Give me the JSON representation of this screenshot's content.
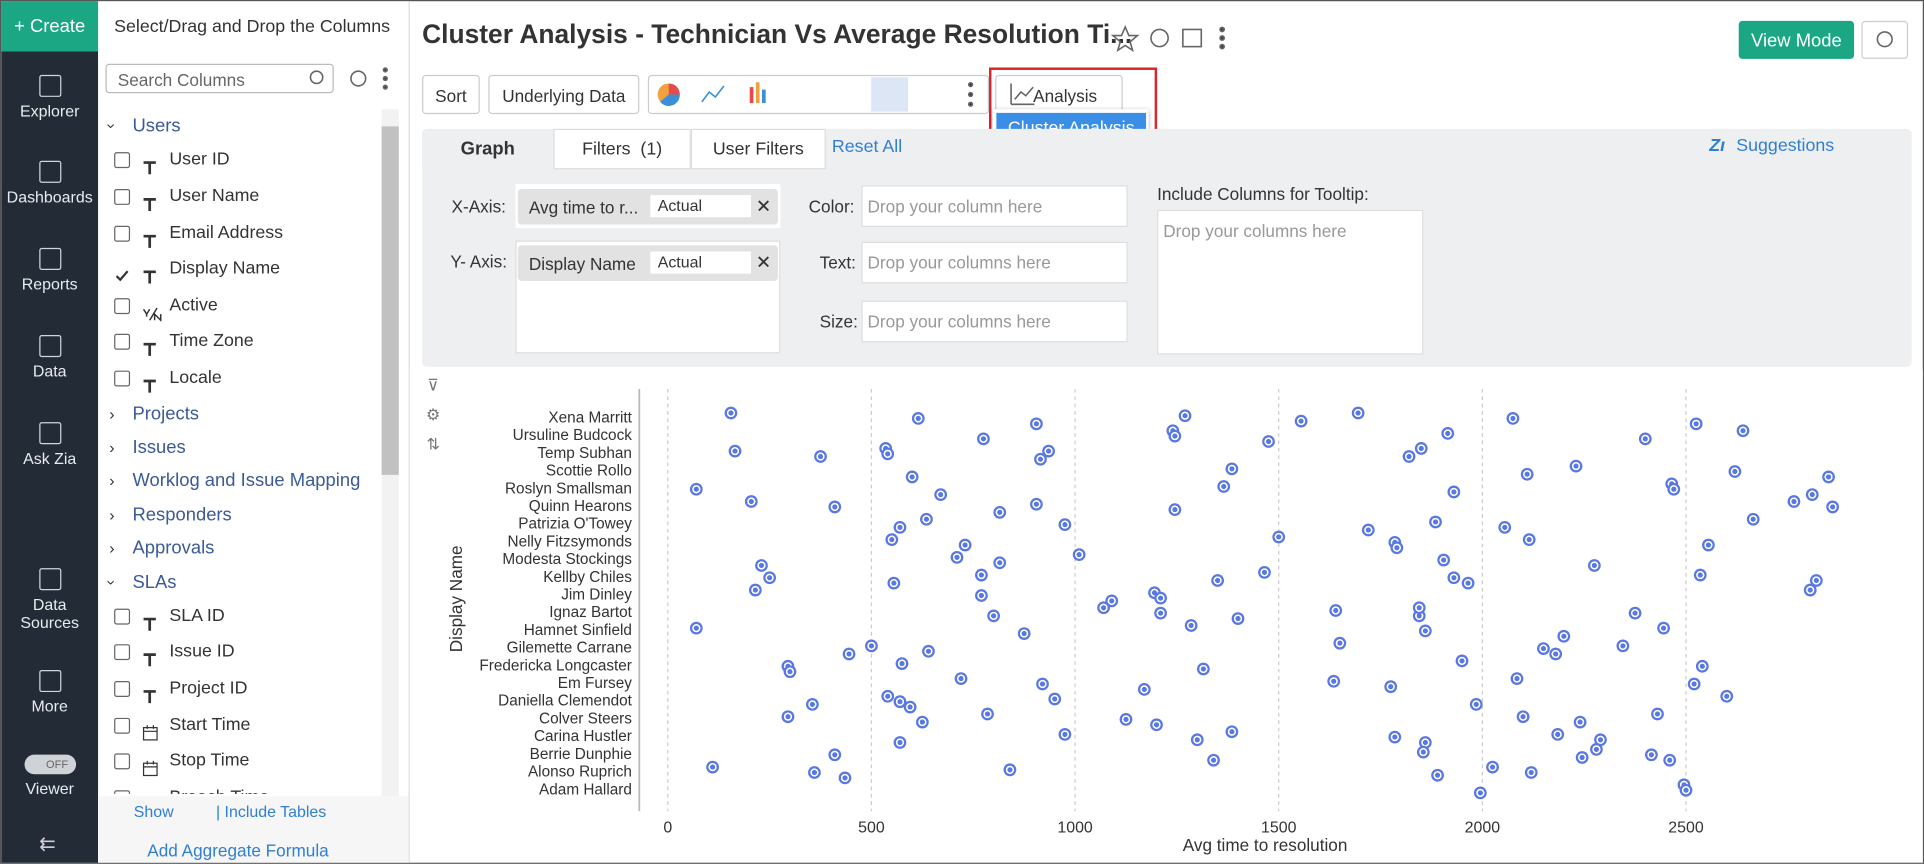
{
  "nav": {
    "create": "Create",
    "items": [
      "Explorer",
      "Dashboards",
      "Reports",
      "Data",
      "Ask Zia",
      "Data Sources",
      "More",
      "Viewer"
    ],
    "toggle": "OFF"
  },
  "columns_panel": {
    "heading": "Select/Drag and Drop the Columns",
    "search_placeholder": "Search Columns",
    "tables": [
      {
        "name": "Users",
        "expanded": true,
        "columns": [
          {
            "name": "User ID",
            "icon": "text",
            "checked": false
          },
          {
            "name": "User Name",
            "icon": "text",
            "checked": false
          },
          {
            "name": "Email Address",
            "icon": "text",
            "checked": false
          },
          {
            "name": "Display Name",
            "icon": "text",
            "checked": true
          },
          {
            "name": "Active",
            "icon": "boolean",
            "checked": false
          },
          {
            "name": "Time Zone",
            "icon": "text",
            "checked": false
          },
          {
            "name": "Locale",
            "icon": "text",
            "checked": false
          }
        ]
      },
      {
        "name": "Projects",
        "expanded": false,
        "columns": []
      },
      {
        "name": "Issues",
        "expanded": false,
        "columns": []
      },
      {
        "name": "Worklog and Issue Mapping",
        "expanded": false,
        "columns": []
      },
      {
        "name": "Responders",
        "expanded": false,
        "columns": []
      },
      {
        "name": "Approvals",
        "expanded": false,
        "columns": []
      },
      {
        "name": "SLAs",
        "expanded": true,
        "columns": [
          {
            "name": "SLA ID",
            "icon": "text",
            "checked": false
          },
          {
            "name": "Issue ID",
            "icon": "text",
            "checked": false
          },
          {
            "name": "Project ID",
            "icon": "text",
            "checked": false
          },
          {
            "name": "Start Time",
            "icon": "date",
            "checked": false
          },
          {
            "name": "Stop Time",
            "icon": "date",
            "checked": false
          },
          {
            "name": "Breach Time",
            "icon": "date",
            "checked": false
          }
        ]
      }
    ],
    "footer": {
      "show": "Show",
      "include": "| Include Tables",
      "aggregate": "Add Aggregate Formula"
    }
  },
  "header": {
    "title": "Cluster Analysis - Technician Vs Average Resolution Ti...",
    "view_mode": "View Mode"
  },
  "toolbar": {
    "sort": "Sort",
    "underlying": "Underlying Data",
    "analysis": "Analysis",
    "analysis_option": "Cluster Analysis"
  },
  "tabs": {
    "graph": "Graph",
    "filters": "Filters  (1)",
    "user_filters": "User Filters",
    "reset": "Reset All",
    "suggestions": "Suggestions"
  },
  "config": {
    "x_label": "X-Axis:",
    "x_field": "Avg time to r...",
    "x_agg": "Actual",
    "y_label": "Y- Axis:",
    "y_field": "Display Name",
    "y_agg": "Actual",
    "color_label": "Color:",
    "color_placeholder": "Drop your column here",
    "text_label": "Text:",
    "text_placeholder": "Drop your columns here",
    "size_label": "Size:",
    "size_placeholder": "Drop your columns here",
    "tooltip_label": "Include Columns for Tooltip:",
    "tooltip_placeholder": "Drop your columns here"
  },
  "chart_data": {
    "type": "scatter",
    "x_label": "Avg time to resolution",
    "y_label": "Display Name",
    "color": "#5a78e4",
    "xlim": [
      -70,
      3000
    ],
    "xticks": [
      0,
      500,
      1000,
      1500,
      2000,
      2500
    ],
    "grid": true,
    "categories": [
      "Xena Marritt",
      "Ursuline Budcock",
      "Temp Subhan",
      "Scottie Rollo",
      "Roslyn Smallsman",
      "Quinn Hearons",
      "Patrizia O'Towey",
      "Nelly Fitzsymonds",
      "Modesta Stockings",
      "Kellby Chiles",
      "Jim Dinley",
      "Ignaz Bartot",
      "Hamnet Sinfield",
      "Gilemette Carrane",
      "Fredericka Longcaster",
      "Em Fursey",
      "Daniella Clemendot",
      "Colver Steers",
      "Carina Hustler",
      "Berrie Dunphie",
      "Alonso Ruprich",
      "Adam Hallard"
    ],
    "values": [
      [
        155,
        615,
        905,
        1270,
        1555,
        1695,
        2075,
        2525
      ],
      [
        775,
        1240,
        1245,
        1475,
        1915,
        2400,
        2640
      ],
      [
        165,
        375,
        535,
        540,
        915,
        935,
        1820,
        1850
      ],
      [
        600,
        1385,
        2110,
        2230,
        2620,
        2850
      ],
      [
        70,
        670,
        1365,
        1930,
        2465,
        2470,
        2810
      ],
      [
        205,
        410,
        815,
        905,
        1245,
        2765,
        2860
      ],
      [
        570,
        635,
        975,
        1720,
        1885,
        2055,
        2665
      ],
      [
        550,
        730,
        1500,
        1785,
        1790,
        2115,
        2555
      ],
      [
        230,
        710,
        815,
        1010,
        1905,
        2275
      ],
      [
        250,
        555,
        770,
        1350,
        1465,
        1930,
        1965,
        2535,
        2820
      ],
      [
        215,
        770,
        1090,
        1195,
        1210,
        2805
      ],
      [
        800,
        1070,
        1210,
        1400,
        1640,
        1845,
        1845,
        2375
      ],
      [
        70,
        875,
        1285,
        1860,
        2200,
        2445
      ],
      [
        445,
        500,
        640,
        1650,
        2150,
        2180,
        2345
      ],
      [
        295,
        300,
        575,
        1315,
        1950,
        2540
      ],
      [
        720,
        920,
        1170,
        1635,
        1775,
        2085,
        2520
      ],
      [
        355,
        540,
        570,
        595,
        950,
        1985,
        2600
      ],
      [
        295,
        625,
        785,
        1125,
        1200,
        2100,
        2240,
        2430
      ],
      [
        570,
        975,
        1300,
        1385,
        1785,
        1860,
        2185,
        2290
      ],
      [
        410,
        1340,
        1855,
        2245,
        2280,
        2415,
        2460
      ],
      [
        110,
        360,
        435,
        840,
        1890,
        2025,
        2120
      ],
      [
        1995,
        2495,
        2500
      ]
    ]
  }
}
